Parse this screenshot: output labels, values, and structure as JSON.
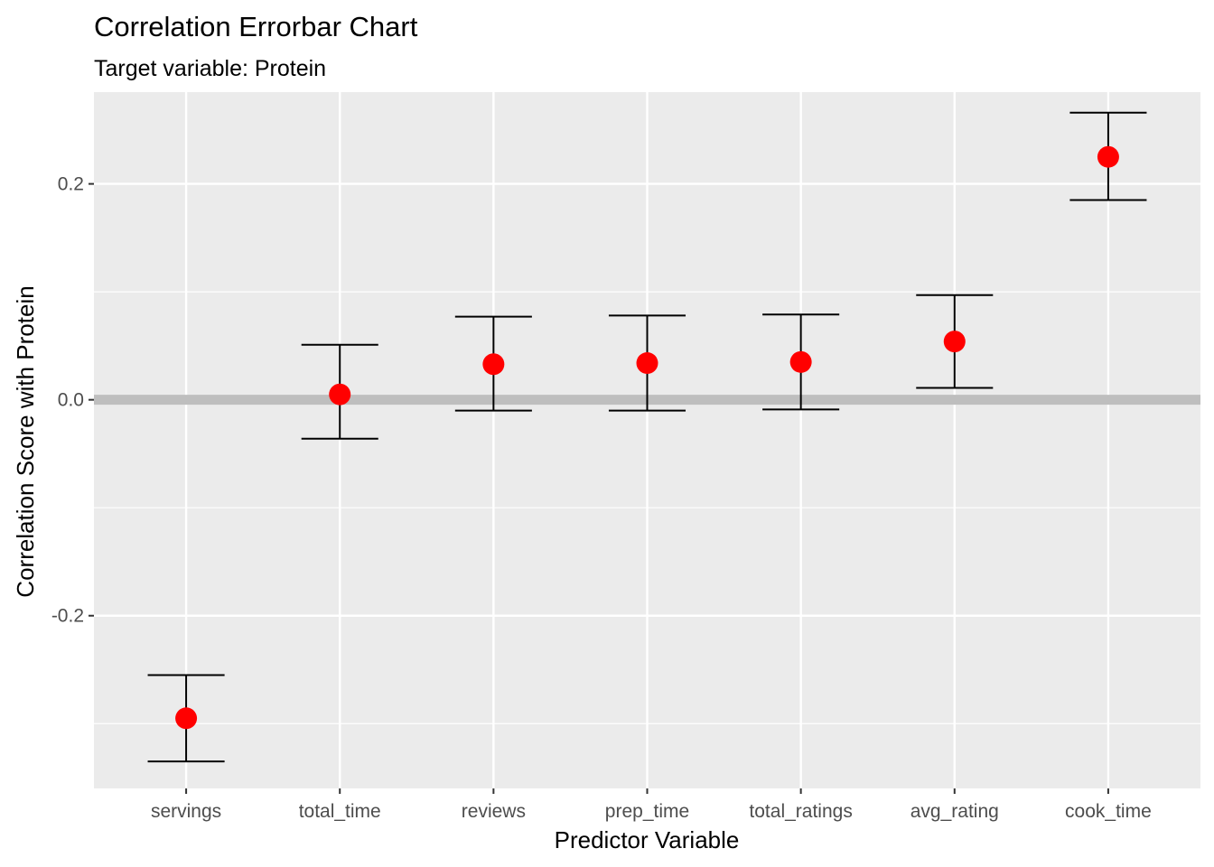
{
  "chart_data": {
    "type": "errorbar",
    "title": "Correlation Errorbar Chart",
    "subtitle": "Target variable: Protein",
    "xlabel": "Predictor Variable",
    "ylabel": "Correlation Score with Protein",
    "categories": [
      "servings",
      "total_time",
      "reviews",
      "prep_time",
      "total_ratings",
      "avg_rating",
      "cook_time"
    ],
    "series": [
      {
        "values": [
          -0.295,
          0.005,
          0.033,
          0.034,
          0.035,
          0.054,
          0.225
        ],
        "lower": [
          -0.335,
          -0.036,
          -0.01,
          -0.01,
          -0.009,
          0.011,
          0.185
        ],
        "upper": [
          -0.255,
          0.051,
          0.077,
          0.078,
          0.079,
          0.097,
          0.266
        ]
      }
    ],
    "ylim": [
      -0.36,
      0.285
    ],
    "yticks": [
      -0.2,
      0.0,
      0.2
    ],
    "ytick_labels": [
      "-0.2",
      "0.0",
      "0.2"
    ],
    "reference_line": 0.0,
    "grid": true,
    "colors": {
      "point": "#ff0000",
      "errorbar": "#000000",
      "panel_background": "#ebebeb",
      "grid": "#ffffff",
      "reference_line": "#bebebe"
    }
  }
}
